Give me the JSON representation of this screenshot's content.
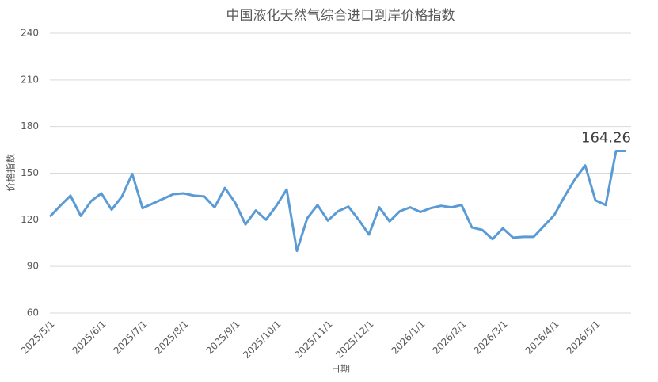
{
  "chart_data": {
    "type": "line",
    "title": "中国液化天然气综合进口到岸价格指数",
    "x_label": "日期",
    "y_label": "价格指数",
    "categories": [
      "2025/5/1",
      null,
      null,
      null,
      null,
      "2025/6/1",
      null,
      null,
      null,
      "2025/7/1",
      null,
      null,
      null,
      "2025/8/1",
      null,
      null,
      null,
      null,
      "2025/9/1",
      null,
      null,
      null,
      "2025/10/1",
      null,
      null,
      null,
      null,
      "2025/11/1",
      null,
      null,
      null,
      "2025/12/1",
      null,
      null,
      null,
      null,
      "2026/1/1",
      null,
      null,
      null,
      "2026/2/1",
      null,
      null,
      null,
      "2026/3/1",
      null,
      null,
      null,
      null,
      "2026/4/1",
      null,
      null,
      null,
      "2026/5/1",
      null,
      null,
      null
    ],
    "values": [
      122,
      129,
      135.5,
      122.5,
      132,
      137,
      126.5,
      135,
      149.5,
      127.5,
      130.5,
      133.5,
      136.5,
      137,
      135.5,
      135,
      128,
      140.5,
      131,
      117,
      126,
      120,
      129,
      139.5,
      100,
      121,
      129.5,
      119.5,
      125.5,
      128.5,
      120,
      110.5,
      128,
      119,
      125.5,
      128,
      125,
      127.5,
      129,
      128,
      129.5,
      115,
      113.5,
      107.5,
      114.5,
      108.5,
      109,
      109,
      116,
      123,
      135,
      146,
      155,
      132.5,
      129.5,
      164.26,
      164.26
    ],
    "color": "#5b9bd5",
    "ylim": [
      60,
      240
    ],
    "yticks": [
      60,
      90,
      120,
      150,
      180,
      210,
      240
    ],
    "grid": true
  }
}
